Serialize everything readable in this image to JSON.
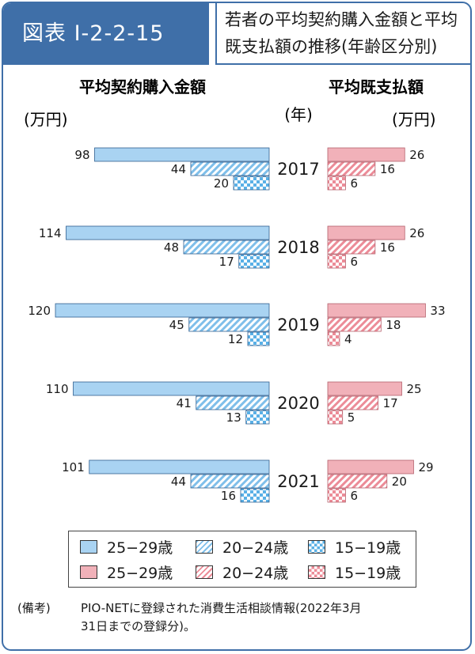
{
  "figure_tag": "図表 I-2-2-15",
  "title_lines": [
    "若者の平均契約購入金額と平均",
    "既支払額の推移(年齢区分別)"
  ],
  "left_heading": "平均契約購入金額",
  "left_unit": "(万円)",
  "year_unit": "(年)",
  "right_heading": "平均既支払額",
  "right_unit": "(万円)",
  "note_label": "(備考)",
  "note_line1": "PIO-NETに登録された消費生活相談情報(2022年3月",
  "note_line2": "31日までの登録分)。",
  "colors": {
    "blue_accent": "#3f6fa8",
    "bar_blue": "#a9d3f2",
    "bar_pink": "#f1b1b9"
  },
  "legend": {
    "left": [
      {
        "label": "25−29歳",
        "pattern": "solid-blue"
      },
      {
        "label": "20−24歳",
        "pattern": "diagonal-blue"
      },
      {
        "label": "15−19歳",
        "pattern": "checker-blue"
      }
    ],
    "right": [
      {
        "label": "25−29歳",
        "pattern": "solid-pink"
      },
      {
        "label": "20−24歳",
        "pattern": "diagonal-pink"
      },
      {
        "label": "15−19歳",
        "pattern": "checker-pink"
      }
    ]
  },
  "chart_data": {
    "type": "bar",
    "orientation": "horizontal-butterfly",
    "categories": [
      "2017",
      "2018",
      "2019",
      "2020",
      "2021"
    ],
    "series_groups": [
      "25−29歳",
      "20−24歳",
      "15−19歳"
    ],
    "left": {
      "title": "平均契約購入金額",
      "unit": "(万円)",
      "series": [
        {
          "name": "25−29歳",
          "values": [
            98,
            114,
            120,
            110,
            101
          ]
        },
        {
          "name": "20−24歳",
          "values": [
            44,
            48,
            45,
            41,
            44
          ]
        },
        {
          "name": "15−19歳",
          "values": [
            20,
            17,
            12,
            13,
            16
          ]
        }
      ]
    },
    "right": {
      "title": "平均既支払額",
      "unit": "(万円)",
      "series": [
        {
          "name": "25−29歳",
          "values": [
            26,
            26,
            33,
            25,
            29
          ]
        },
        {
          "name": "20−24歳",
          "values": [
            16,
            16,
            18,
            17,
            20
          ]
        },
        {
          "name": "15−19歳",
          "values": [
            6,
            6,
            4,
            5,
            6
          ]
        }
      ]
    },
    "grid": false
  }
}
